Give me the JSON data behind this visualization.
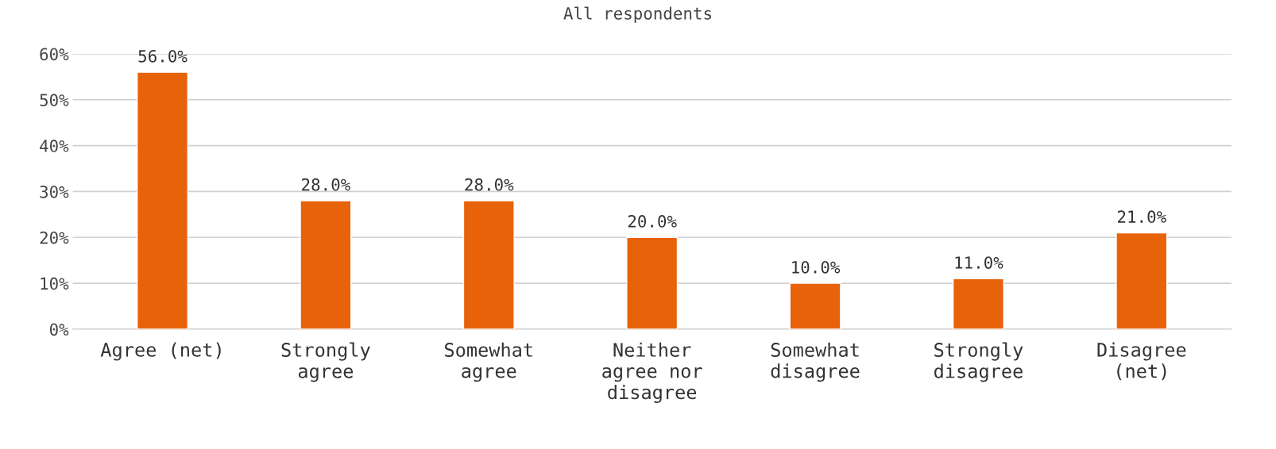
{
  "chart_data": {
    "type": "bar",
    "title": "All respondents",
    "categories": [
      "Agree (net)",
      "Strongly agree",
      "Somewhat agree",
      "Neither agree nor disagree",
      "Somewhat disagree",
      "Strongly disagree",
      "Disagree (net)"
    ],
    "values": [
      56,
      28,
      28,
      20,
      10,
      11,
      21
    ],
    "value_labels": [
      "56.0%",
      "28.0%",
      "28.0%",
      "20.0%",
      "10.0%",
      "11.0%",
      "21.0%"
    ],
    "color": "#e8620a",
    "ylim": [
      0,
      60
    ],
    "yticks": [
      {
        "value": 0,
        "label": "0%"
      },
      {
        "value": 10,
        "label": "10%"
      },
      {
        "value": 20,
        "label": "20%"
      },
      {
        "value": 30,
        "label": "30%"
      },
      {
        "value": 40,
        "label": "40%"
      },
      {
        "value": 50,
        "label": "50%"
      },
      {
        "value": 60,
        "label": "60%"
      }
    ],
    "grid": "y",
    "legend": false
  }
}
